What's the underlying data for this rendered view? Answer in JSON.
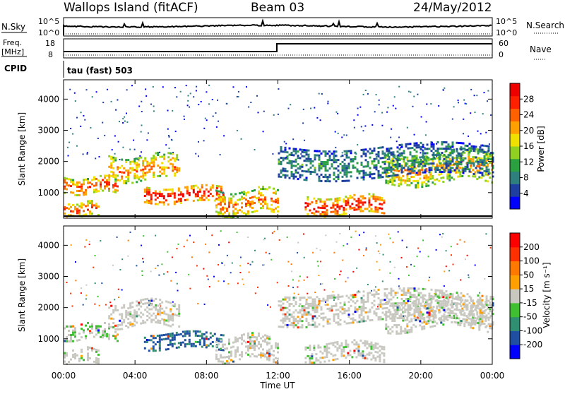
{
  "header": {
    "station": "Wallops Island (fitACF)",
    "beam": "Beam 03",
    "date": "24/May/2012"
  },
  "strip_labels": {
    "nsky": "N.Sky",
    "nsky_ticks": [
      "10^5",
      "10^0"
    ],
    "nsearch": "N.Search",
    "nsearch_ticks": [
      "10^5",
      "10^0"
    ],
    "freq_line1": "Freq.",
    "freq_line2": "[MHz]",
    "freq_ticks": [
      "18",
      "8"
    ],
    "nave": "Nave",
    "nave_ticks": [
      "60",
      "0"
    ],
    "cpid": "CPID",
    "cpid_value": "tau (fast) 503"
  },
  "colors": {
    "power": [
      "#0000ff",
      "#1f3fa0",
      "#2f7f7f",
      "#2aa040",
      "#8fd020",
      "#f0e000",
      "#ffa000",
      "#ff6000",
      "#ff2000",
      "#ee0000"
    ],
    "velocity": [
      "#0000ff",
      "#1f4fa0",
      "#308f70",
      "#40c030",
      "#c8c8c0",
      "#ffa000",
      "#ff7800",
      "#ff3000",
      "#ff0000"
    ]
  },
  "chart_data": [
    {
      "type": "heatmap",
      "name": "power-panel",
      "xlabel": "",
      "ylabel": "Slant Range [km]",
      "x_ticks": [
        "00:00",
        "04:00",
        "08:00",
        "12:00",
        "16:00",
        "20:00",
        "00:00"
      ],
      "y_ticks": [
        1000,
        2000,
        3000,
        4000
      ],
      "xlim": [
        0,
        24
      ],
      "ylim": [
        180,
        4620
      ],
      "colorbar": {
        "label": "Power [dB]",
        "ticks": [
          "4",
          "8",
          "12",
          "16",
          "20",
          "24",
          "28"
        ]
      },
      "bands": [
        {
          "t_start": 0.0,
          "t_end": 3.0,
          "range_start": 1000,
          "range_end": 1500,
          "level": 0.82
        },
        {
          "t_start": 2.5,
          "t_end": 6.5,
          "range_start": 1400,
          "range_end": 2200,
          "level": 0.7
        },
        {
          "t_start": 4.5,
          "t_end": 9.0,
          "range_start": 700,
          "range_end": 1200,
          "level": 0.95
        },
        {
          "t_start": 8.5,
          "t_end": 12.0,
          "range_start": 300,
          "range_end": 1100,
          "level": 0.72
        },
        {
          "t_start": 13.5,
          "t_end": 18.0,
          "range_start": 300,
          "range_end": 900,
          "level": 0.9
        },
        {
          "t_start": 18.0,
          "t_end": 24.0,
          "range_start": 1300,
          "range_end": 2300,
          "level": 0.66
        },
        {
          "t_start": 12.0,
          "t_end": 24.0,
          "range_start": 1500,
          "range_end": 2500,
          "level": 0.3
        },
        {
          "t_start": 0.0,
          "t_end": 2.0,
          "range_start": 250,
          "range_end": 700,
          "level": 0.78
        }
      ]
    },
    {
      "type": "heatmap",
      "name": "velocity-panel",
      "xlabel": "Time UT",
      "ylabel": "Slant Range [km]",
      "x_ticks": [
        "00:00",
        "04:00",
        "08:00",
        "12:00",
        "16:00",
        "20:00",
        "00:00"
      ],
      "y_ticks": [
        1000,
        2000,
        3000,
        4000
      ],
      "xlim": [
        0,
        24
      ],
      "ylim": [
        180,
        4620
      ],
      "colorbar": {
        "label": "Velocity [m s⁻¹]",
        "ticks": [
          "200",
          "100",
          "50",
          "15",
          "-15",
          "-50",
          "-100",
          "-200"
        ]
      },
      "bands": [
        {
          "t_start": 0.0,
          "t_end": 3.0,
          "range_start": 1000,
          "range_end": 1500,
          "level": 0.45
        },
        {
          "t_start": 2.5,
          "t_end": 6.5,
          "range_start": 1400,
          "range_end": 2200,
          "level": 0.5
        },
        {
          "t_start": 4.5,
          "t_end": 9.0,
          "range_start": 700,
          "range_end": 1200,
          "level": 0.2
        },
        {
          "t_start": 8.5,
          "t_end": 12.0,
          "range_start": 300,
          "range_end": 1100,
          "level": 0.5
        },
        {
          "t_start": 13.5,
          "t_end": 18.0,
          "range_start": 300,
          "range_end": 900,
          "level": 0.5
        },
        {
          "t_start": 18.0,
          "t_end": 24.0,
          "range_start": 1300,
          "range_end": 2300,
          "level": 0.5
        },
        {
          "t_start": 12.0,
          "t_end": 24.0,
          "range_start": 1500,
          "range_end": 2500,
          "level": 0.5
        },
        {
          "t_start": 0.0,
          "t_end": 2.0,
          "range_start": 250,
          "range_end": 700,
          "level": 0.5
        }
      ]
    }
  ]
}
